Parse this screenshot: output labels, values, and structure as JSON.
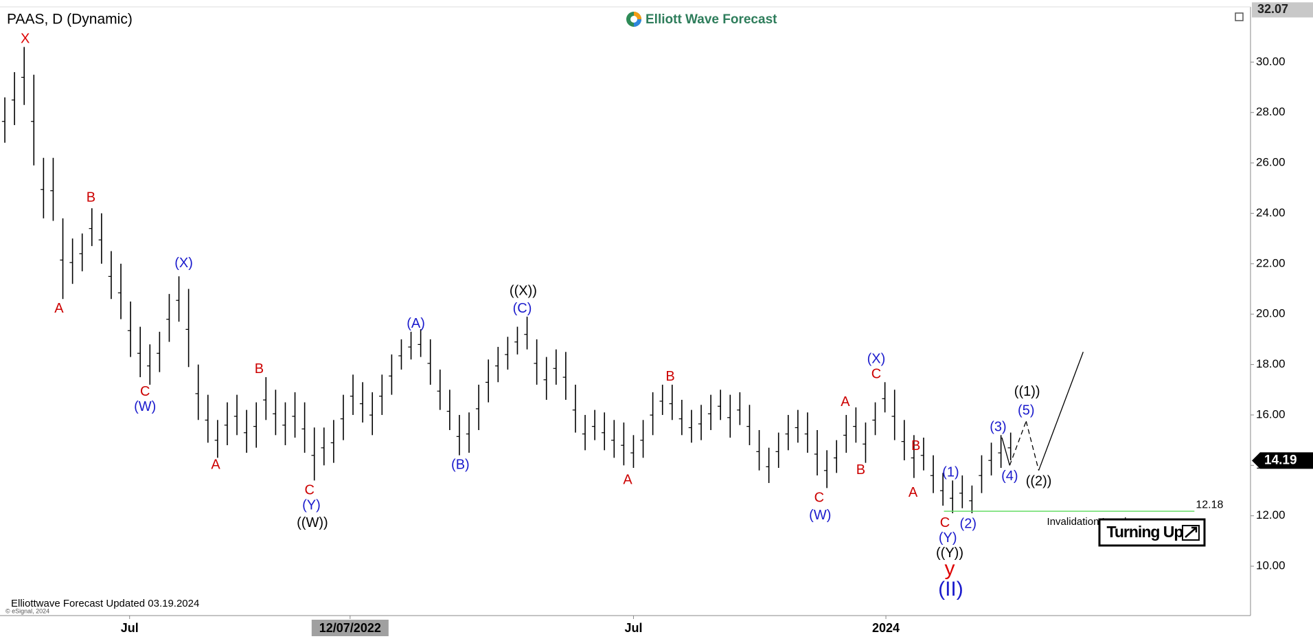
{
  "chart_data": {
    "type": "ohlc",
    "title": "PAAS, D (Dynamic)",
    "logo": "Elliott Wave Forecast",
    "footer": "Elliottwave Forecast Updated 03.19.2024",
    "copyright": "© eSignal, 2024",
    "badge": "Turning Up",
    "color": "#000000",
    "high": [
      28.6,
      29.6,
      30.6,
      29.5,
      26.2,
      26.2,
      23.8,
      23,
      23.2,
      24.2,
      24,
      22.5,
      22,
      20.5,
      19.5,
      18.8,
      19.3,
      20.8,
      21.5,
      21,
      18,
      16.8,
      15.8,
      16.5,
      16.8,
      16.2,
      16.5,
      17.5,
      17,
      16.5,
      16.9,
      16.5,
      15.5,
      15.5,
      15.8,
      16.8,
      17.6,
      17.3,
      16.9,
      17.6,
      18.4,
      19,
      19.3,
      19.4,
      19,
      17.8,
      17,
      16,
      16.1,
      17.2,
      18.2,
      18.7,
      19.1,
      19.5,
      19.9,
      19,
      18.3,
      18.6,
      18.5,
      17.2,
      16,
      16.2,
      16.1,
      15.8,
      15.7,
      15.2,
      15.8,
      16.9,
      17.2,
      17.2,
      16.6,
      16.2,
      16.4,
      16.8,
      17,
      16.8,
      16.9,
      16.4,
      15.4,
      14.7,
      15.3,
      16,
      16.2,
      16.1,
      15.4,
      14.6,
      15,
      16,
      16.3,
      15.7,
      16.5,
      17.3,
      17,
      15.8,
      15.2,
      15.1,
      14.4,
      13.7,
      13.4,
      13.6,
      13.2,
      14.4,
      14.9,
      15.2,
      15.3
    ],
    "low": [
      26.8,
      27.5,
      28.3,
      25.9,
      23.8,
      23.7,
      20.6,
      21.2,
      21.7,
      22.7,
      22,
      20.6,
      19.8,
      18.3,
      17.5,
      17.2,
      17.7,
      18.9,
      19.7,
      17.9,
      15.8,
      14.9,
      14.3,
      14.8,
      15.2,
      14.5,
      14.7,
      15.8,
      15.2,
      14.8,
      15.1,
      14.5,
      13.4,
      14,
      14.1,
      15,
      16,
      15.7,
      15.2,
      16,
      16.8,
      17.8,
      18.2,
      18.3,
      17.2,
      16.2,
      15.4,
      14.4,
      14.5,
      15.4,
      16.5,
      17.3,
      17.8,
      18.4,
      18.6,
      17.2,
      16.6,
      17.2,
      16.6,
      15.3,
      14.6,
      15,
      14.6,
      14.3,
      14,
      13.9,
      14.3,
      15.2,
      16,
      15.8,
      15.2,
      14.9,
      15,
      15.4,
      15.8,
      15.1,
      15.6,
      14.8,
      13.8,
      13.3,
      13.9,
      14.6,
      14.9,
      14.5,
      13.6,
      13.1,
      13.7,
      14.5,
      14.9,
      14.1,
      15.2,
      16.1,
      15,
      14.2,
      13.5,
      13.8,
      12.9,
      12.4,
      12.1,
      12.3,
      12.1,
      12.9,
      13.6,
      13.9,
      14.2
    ],
    "xlim": [
      0,
      129.3
    ],
    "xticks": [
      {
        "value": 13.4,
        "label": "Jul"
      },
      {
        "value": 36.2,
        "label": "12/07/2022"
      },
      {
        "value": 65.5,
        "label": "Jul"
      },
      {
        "value": 91.6,
        "label": "2024"
      }
    ],
    "highlight_xtick": 1,
    "ylim": [
      8.04,
      32.19
    ],
    "yticks": [
      {
        "value": 10,
        "label": "10.00"
      },
      {
        "value": 12,
        "label": "12.00"
      },
      {
        "value": 14,
        "label": "14.00"
      },
      {
        "value": 16,
        "label": "16.00"
      },
      {
        "value": 18,
        "label": "18.00"
      },
      {
        "value": 20,
        "label": "20.00"
      },
      {
        "value": 22,
        "label": "22.00"
      },
      {
        "value": 24,
        "label": "24.00"
      },
      {
        "value": 26,
        "label": "26.00"
      },
      {
        "value": 28,
        "label": "28.00"
      },
      {
        "value": 30,
        "label": "30.00"
      }
    ],
    "last_price": 14.19,
    "top_price": 32.07,
    "invalidation": {
      "value": 12.18,
      "label": "Invalidation Level",
      "x": [
        97.6,
        123.5
      ],
      "color": "#66dd66"
    },
    "projection": {
      "x": [
        103.6,
        104.4,
        106.1,
        107.4,
        112
      ],
      "y": [
        15.1,
        14.0,
        15.75,
        13.8,
        18.5
      ],
      "dashed": [
        false,
        true,
        true,
        false
      ]
    },
    "annotations": [
      {
        "text": "X",
        "x": 2.6,
        "y": 30.9,
        "color": "#dd0000"
      },
      {
        "text": "A",
        "x": 6.1,
        "y": 20.2,
        "color": "#cc0000"
      },
      {
        "text": "B",
        "x": 9.4,
        "y": 24.6,
        "color": "#cc0000"
      },
      {
        "text": "C",
        "x": 15.0,
        "y": 16.9,
        "color": "#cc0000"
      },
      {
        "text": "(W)",
        "x": 15.0,
        "y": 16.3,
        "color": "#1a1acc"
      },
      {
        "text": "(X)",
        "x": 19.0,
        "y": 22.0,
        "color": "#1a1acc"
      },
      {
        "text": "A",
        "x": 22.3,
        "y": 14.0,
        "color": "#cc0000"
      },
      {
        "text": "B",
        "x": 26.8,
        "y": 17.8,
        "color": "#cc0000"
      },
      {
        "text": "C",
        "x": 32.0,
        "y": 13.0,
        "color": "#cc0000"
      },
      {
        "text": "(Y)",
        "x": 32.2,
        "y": 12.4,
        "color": "#1a1acc"
      },
      {
        "text": "((W))",
        "x": 32.3,
        "y": 11.7,
        "color": "#000000"
      },
      {
        "text": "(A)",
        "x": 43.0,
        "y": 19.6,
        "color": "#1a1acc"
      },
      {
        "text": "(B)",
        "x": 47.6,
        "y": 14.0,
        "color": "#1a1acc"
      },
      {
        "text": "((X))",
        "x": 54.1,
        "y": 20.9,
        "color": "#000000"
      },
      {
        "text": "(C)",
        "x": 54.0,
        "y": 20.2,
        "color": "#1a1acc"
      },
      {
        "text": "B",
        "x": 69.3,
        "y": 17.5,
        "color": "#cc0000"
      },
      {
        "text": "A",
        "x": 64.9,
        "y": 13.4,
        "color": "#cc0000"
      },
      {
        "text": "A",
        "x": 87.4,
        "y": 16.5,
        "color": "#cc0000"
      },
      {
        "text": "B",
        "x": 89.0,
        "y": 13.8,
        "color": "#cc0000"
      },
      {
        "text": "C",
        "x": 84.7,
        "y": 12.7,
        "color": "#cc0000"
      },
      {
        "text": "(W)",
        "x": 84.8,
        "y": 12.0,
        "color": "#1a1acc"
      },
      {
        "text": "(X)",
        "x": 90.6,
        "y": 18.2,
        "color": "#1a1acc"
      },
      {
        "text": "C",
        "x": 90.6,
        "y": 17.6,
        "color": "#cc0000"
      },
      {
        "text": "B",
        "x": 94.7,
        "y": 14.75,
        "color": "#cc0000"
      },
      {
        "text": "A",
        "x": 94.4,
        "y": 12.9,
        "color": "#cc0000"
      },
      {
        "text": "(1)",
        "x": 98.3,
        "y": 13.7,
        "color": "#1a1acc"
      },
      {
        "text": "C",
        "x": 97.7,
        "y": 11.7,
        "color": "#cc0000"
      },
      {
        "text": "(2)",
        "x": 100.1,
        "y": 11.66,
        "color": "#1a1acc"
      },
      {
        "text": "(Y)",
        "x": 98.0,
        "y": 11.1,
        "color": "#1a1acc"
      },
      {
        "text": "((Y))",
        "x": 98.2,
        "y": 10.5,
        "color": "#000000"
      },
      {
        "text": "y",
        "x": 98.2,
        "y": 9.87,
        "color": "#dd0000",
        "size": "large"
      },
      {
        "text": "(II)",
        "x": 98.3,
        "y": 9.04,
        "color": "#1a1acc",
        "size": "large"
      },
      {
        "text": "(3)",
        "x": 103.2,
        "y": 15.5,
        "color": "#1a1acc"
      },
      {
        "text": "(4)",
        "x": 104.4,
        "y": 13.55,
        "color": "#1a1acc"
      },
      {
        "text": "(5)",
        "x": 106.1,
        "y": 16.15,
        "color": "#1a1acc"
      },
      {
        "text": "((1))",
        "x": 106.2,
        "y": 16.9,
        "color": "#000000"
      },
      {
        "text": "((2))",
        "x": 107.4,
        "y": 13.35,
        "color": "#000000"
      }
    ]
  }
}
